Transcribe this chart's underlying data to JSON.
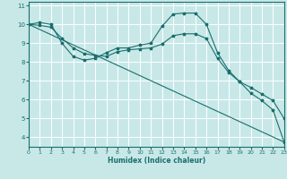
{
  "xlabel": "Humidex (Indice chaleur)",
  "bg_color": "#c8e8e8",
  "grid_color": "#ffffff",
  "line_color": "#1a6e6e",
  "xlim": [
    0,
    23
  ],
  "ylim": [
    3.5,
    11.2
  ],
  "xticks": [
    0,
    1,
    2,
    3,
    4,
    5,
    6,
    7,
    8,
    9,
    10,
    11,
    12,
    13,
    14,
    15,
    16,
    17,
    18,
    19,
    20,
    21,
    22,
    23
  ],
  "yticks": [
    4,
    5,
    6,
    7,
    8,
    9,
    10,
    11
  ],
  "series1_x": [
    0,
    1,
    2,
    3,
    4,
    5,
    6,
    7,
    8,
    9,
    10,
    11,
    12,
    13,
    14,
    15,
    16,
    17,
    18,
    19,
    20,
    21,
    22,
    23
  ],
  "series1_y": [
    10.0,
    10.1,
    10.0,
    9.0,
    8.3,
    8.1,
    8.2,
    8.5,
    8.75,
    8.75,
    8.9,
    9.0,
    9.9,
    10.55,
    10.6,
    10.6,
    10.0,
    8.5,
    7.55,
    6.95,
    6.35,
    5.95,
    5.45,
    3.75
  ],
  "series2_x": [
    0,
    1,
    2,
    3,
    4,
    5,
    6,
    7,
    8,
    9,
    10,
    11,
    12,
    13,
    14,
    15,
    16,
    17,
    18,
    19,
    20,
    21,
    22,
    23
  ],
  "series2_y": [
    10.0,
    9.95,
    9.85,
    9.25,
    8.75,
    8.45,
    8.35,
    8.3,
    8.55,
    8.65,
    8.7,
    8.75,
    8.95,
    9.4,
    9.5,
    9.5,
    9.25,
    8.2,
    7.45,
    6.95,
    6.65,
    6.3,
    5.95,
    5.0
  ],
  "series3_x": [
    0,
    23
  ],
  "series3_y": [
    10.0,
    3.75
  ]
}
